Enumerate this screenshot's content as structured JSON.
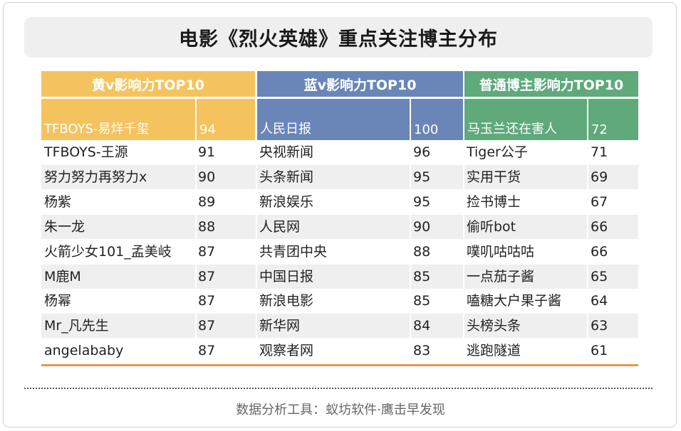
{
  "colors": {
    "yellow_group": "#f5c35e",
    "blue_group": "#6a86b8",
    "green_group": "#5fa97b",
    "bottom_rule": "#e9954f",
    "row_shade": "#efefef"
  },
  "title": "电影《烈火英雄》重点关注博主分布",
  "footer": "数据分析工具：蚁坊软件·鹰击早发现",
  "chart_data": {
    "type": "table",
    "title": "电影《烈火英雄》重点关注博主分布",
    "groups": [
      {
        "name": "黄v影响力TOP10",
        "rows": [
          [
            "TFBOYS-易烊千玺",
            "94"
          ],
          [
            "TFBOYS-王源",
            "91"
          ],
          [
            "努力努力再努力x",
            "90"
          ],
          [
            "杨紫",
            "89"
          ],
          [
            "朱一龙",
            "88"
          ],
          [
            "火箭少女101_孟美岐",
            "87"
          ],
          [
            "M鹿M",
            "87"
          ],
          [
            "杨幂",
            "87"
          ],
          [
            "Mr_凡先生",
            "87"
          ],
          [
            "angelababy",
            "87"
          ]
        ]
      },
      {
        "name": "蓝v影响力TOP10",
        "rows": [
          [
            "人民日报",
            "100"
          ],
          [
            "央视新闻",
            "96"
          ],
          [
            "头条新闻",
            "95"
          ],
          [
            "新浪娱乐",
            "95"
          ],
          [
            "人民网",
            "90"
          ],
          [
            "共青团中央",
            "88"
          ],
          [
            "中国日报",
            "85"
          ],
          [
            "新浪电影",
            "85"
          ],
          [
            "新华网",
            "84"
          ],
          [
            "观察者网",
            "83"
          ]
        ]
      },
      {
        "name": "普通博主影响力TOP10",
        "rows": [
          [
            "马玉兰还在害人",
            "72"
          ],
          [
            "Tiger公子",
            "71"
          ],
          [
            "实用干货",
            "69"
          ],
          [
            "捡书博士",
            "67"
          ],
          [
            "偷听bot",
            "66"
          ],
          [
            "噗叽咕咕咕",
            "66"
          ],
          [
            "一点茄子酱",
            "65"
          ],
          [
            "嗑糖大户果子酱",
            "64"
          ],
          [
            "头榜头条",
            "63"
          ],
          [
            "逃跑隧道",
            "61"
          ]
        ]
      }
    ]
  }
}
